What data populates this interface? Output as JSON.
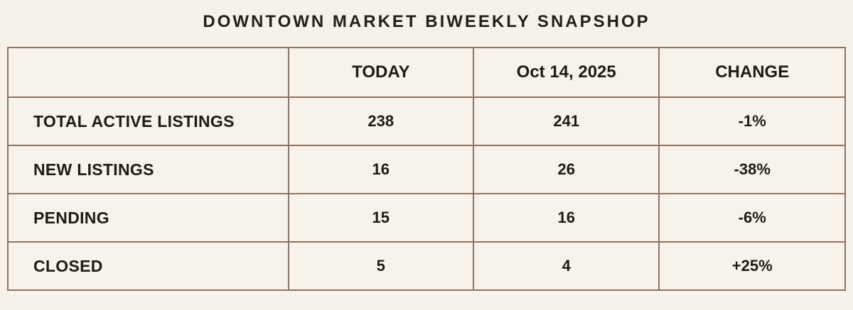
{
  "title": "DOWNTOWN MARKET BIWEEKLY SNAPSHOP",
  "colors": {
    "background": "#f7f2e9",
    "corner_cell_brown": "#866a58",
    "cell_cream": "#f7f2ea",
    "border_inner": "#8d7463",
    "border_outer": "#6f594a",
    "text": "#221f1b"
  },
  "chart_data": {
    "type": "table",
    "title": "DOWNTOWN MARKET BIWEEKLY SNAPSHOP",
    "columns": [
      "",
      "TODAY",
      "Oct 14, 2025",
      "CHANGE"
    ],
    "rows": [
      {
        "label": "TOTAL ACTIVE LISTINGS",
        "values": [
          "238",
          "241",
          "-1%"
        ]
      },
      {
        "label": "NEW LISTINGS",
        "values": [
          "16",
          "26",
          "-38%"
        ]
      },
      {
        "label": "PENDING",
        "values": [
          "15",
          "16",
          "-6%"
        ]
      },
      {
        "label": "CLOSED",
        "values": [
          "5",
          "4",
          "+25%"
        ]
      }
    ]
  }
}
